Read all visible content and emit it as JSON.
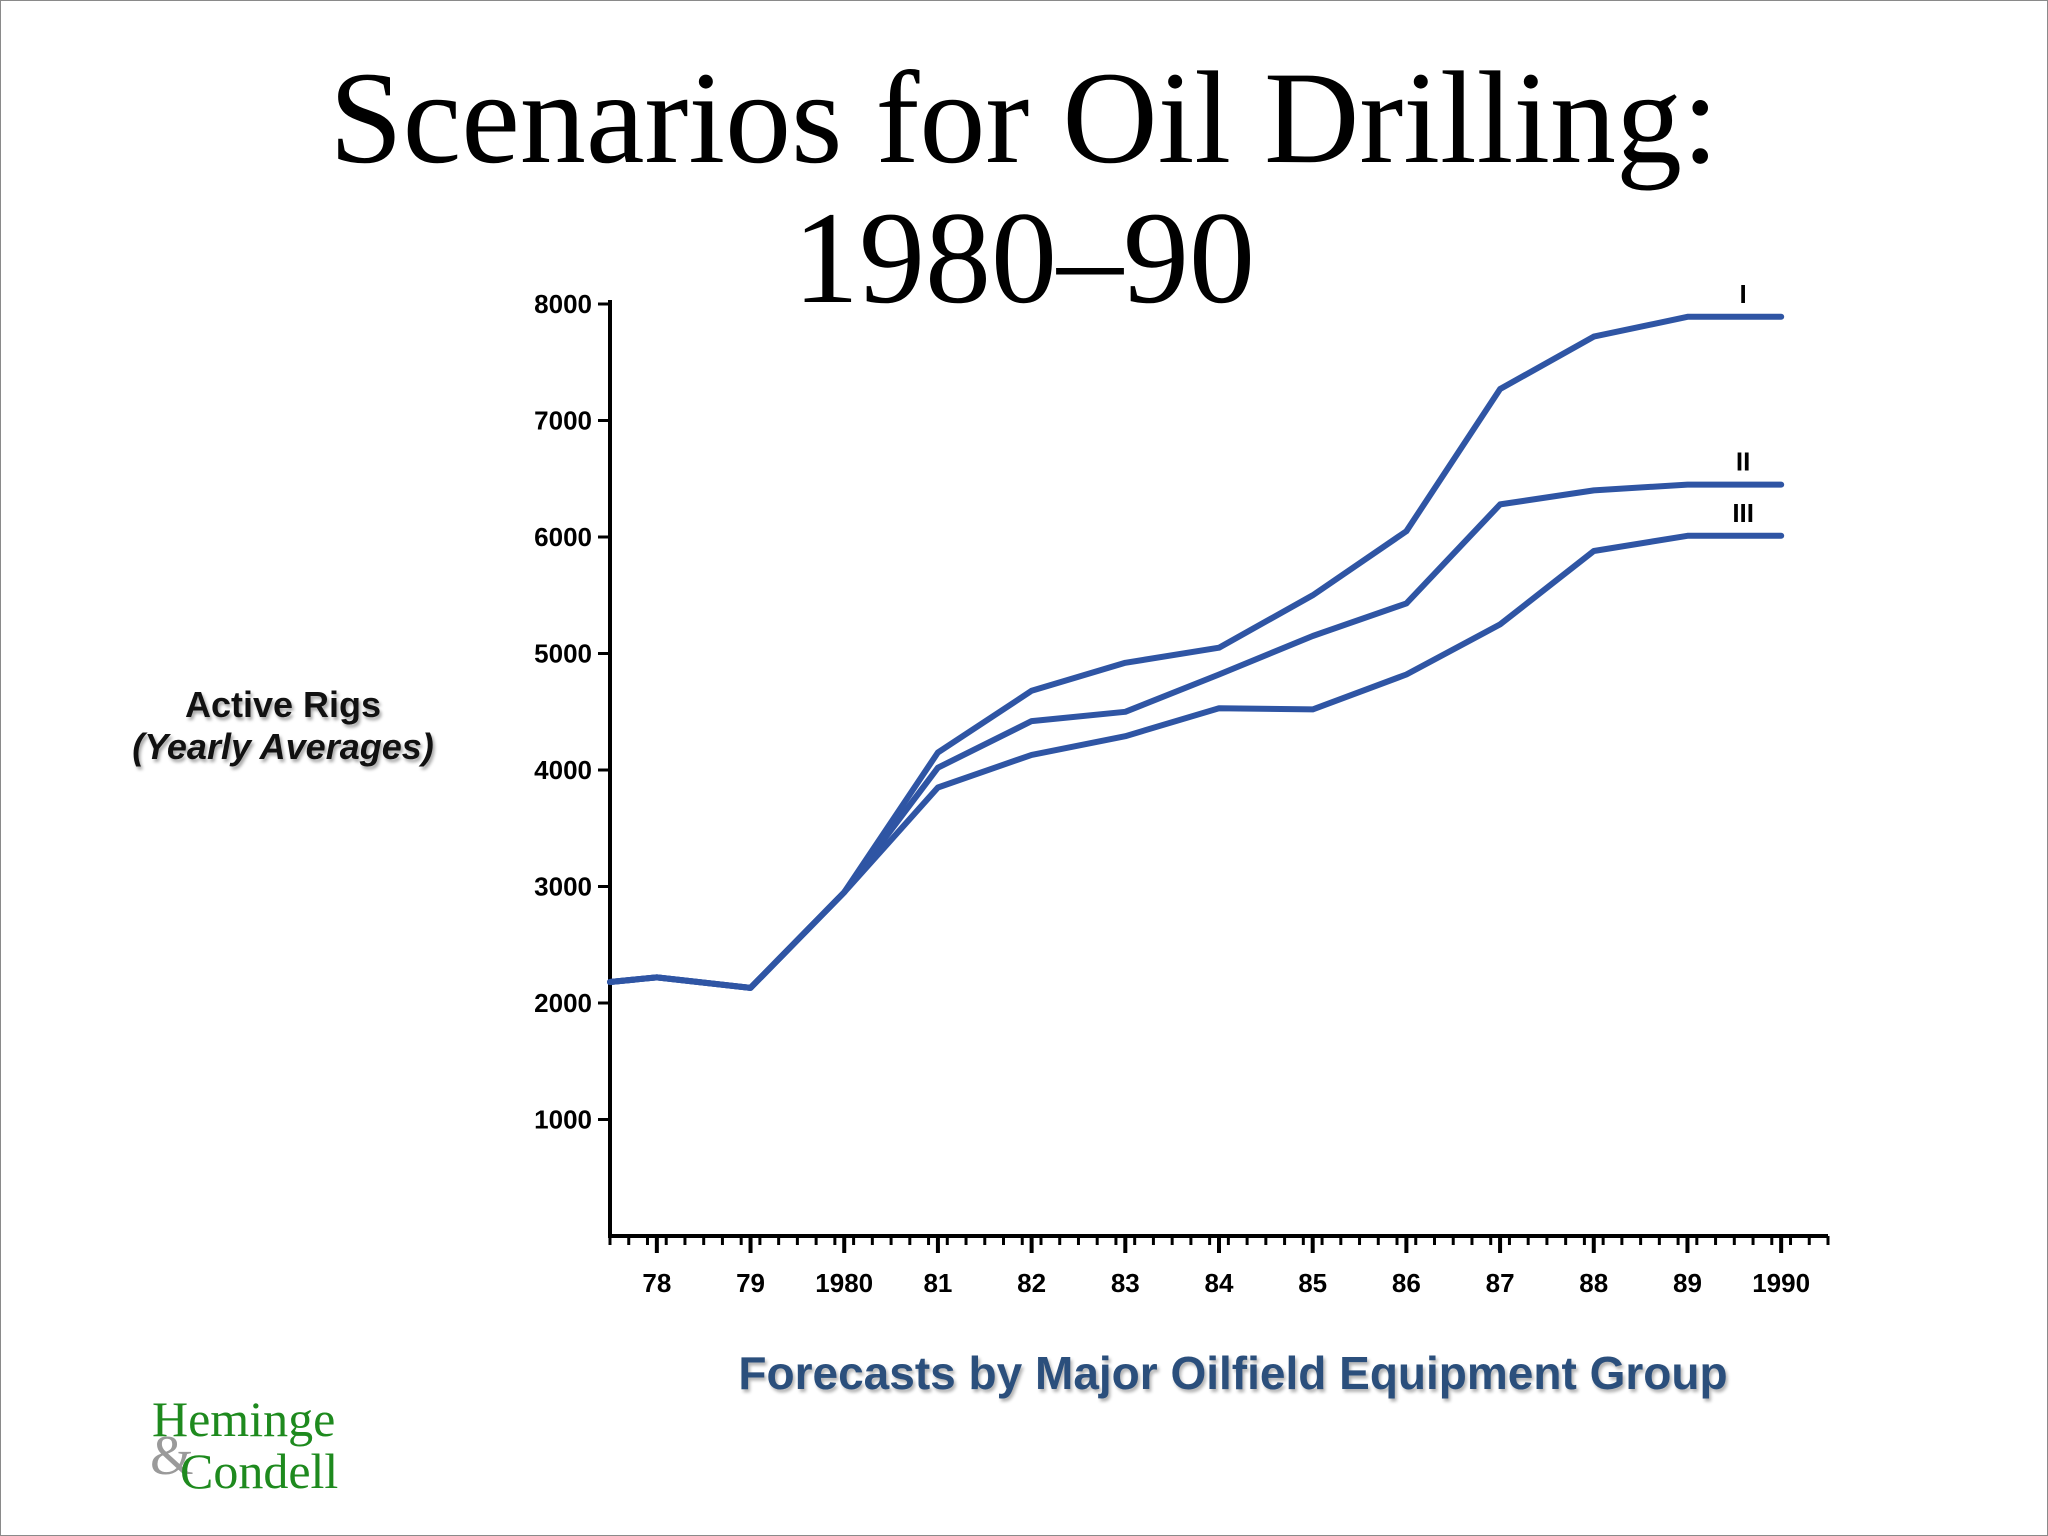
{
  "page": {
    "title_line1": "Scenarios for Oil Drilling:",
    "title_line2": "1980–90",
    "y_label_line1": "Active Rigs",
    "y_label_line2": "(Yearly Averages)",
    "subtitle": "Forecasts by Major Oilfield Equipment Group"
  },
  "logo": {
    "line1": "Heminge",
    "ampersand": "&",
    "line2": "Condell"
  },
  "colors": {
    "series": "#2f55a4",
    "subtitle": "#2b4f7c",
    "logo_green": "#1e8a1e",
    "logo_gray": "#9a9a9a",
    "axis": "#000000"
  },
  "chart_data": {
    "type": "line",
    "title": "Scenarios for Oil Drilling: 1980–90",
    "xlabel": "",
    "ylabel": "Active Rigs (Yearly Averages)",
    "xlim": [
      1977.5,
      1990.5
    ],
    "ylim": [
      0,
      8000
    ],
    "x_ticks": [
      {
        "value": 1978,
        "label": "78"
      },
      {
        "value": 1979,
        "label": "79"
      },
      {
        "value": 1980,
        "label": "1980"
      },
      {
        "value": 1981,
        "label": "81"
      },
      {
        "value": 1982,
        "label": "82"
      },
      {
        "value": 1983,
        "label": "83"
      },
      {
        "value": 1984,
        "label": "84"
      },
      {
        "value": 1985,
        "label": "85"
      },
      {
        "value": 1986,
        "label": "86"
      },
      {
        "value": 1987,
        "label": "87"
      },
      {
        "value": 1988,
        "label": "88"
      },
      {
        "value": 1989,
        "label": "89"
      },
      {
        "value": 1990,
        "label": "1990"
      }
    ],
    "y_ticks": [
      {
        "value": 1000,
        "label": "1000"
      },
      {
        "value": 2000,
        "label": "2000"
      },
      {
        "value": 3000,
        "label": "3000"
      },
      {
        "value": 4000,
        "label": "4000"
      },
      {
        "value": 5000,
        "label": "5000"
      },
      {
        "value": 6000,
        "label": "6000"
      },
      {
        "value": 7000,
        "label": "7000"
      },
      {
        "value": 8000,
        "label": "8000"
      }
    ],
    "series": [
      {
        "name": "I",
        "x": [
          1977.5,
          1978,
          1979,
          1980,
          1981,
          1982,
          1983,
          1984,
          1985,
          1986,
          1987,
          1988,
          1989,
          1990
        ],
        "values": [
          2180,
          2220,
          2130,
          2950,
          4150,
          4680,
          4920,
          5050,
          5500,
          6050,
          7270,
          7720,
          7890,
          7890
        ]
      },
      {
        "name": "II",
        "x": [
          1977.5,
          1978,
          1979,
          1980,
          1981,
          1982,
          1983,
          1984,
          1985,
          1986,
          1987,
          1988,
          1989,
          1990
        ],
        "values": [
          2180,
          2220,
          2130,
          2950,
          4020,
          4420,
          4500,
          4820,
          5150,
          5430,
          6280,
          6400,
          6450,
          6450
        ]
      },
      {
        "name": "III",
        "x": [
          1977.5,
          1978,
          1979,
          1980,
          1981,
          1982,
          1983,
          1984,
          1985,
          1986,
          1987,
          1988,
          1989,
          1990
        ],
        "values": [
          2180,
          2220,
          2130,
          2950,
          3850,
          4130,
          4290,
          4530,
          4520,
          4820,
          5250,
          5880,
          6010,
          6010
        ]
      }
    ]
  }
}
